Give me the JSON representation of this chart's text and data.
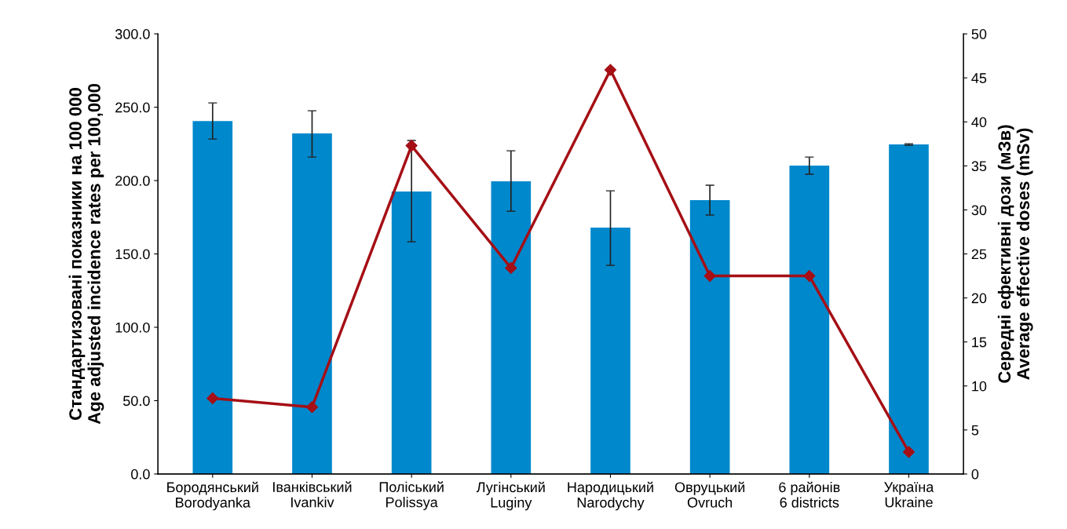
{
  "chart_data": {
    "type": "bar",
    "categories": [
      "Бородянський\nBorodyanka",
      "Іванківський\nIvankiv",
      "Поліський\nPolissya",
      "Лугінський\nLuginy",
      "Народицький\nNarodychy",
      "Овруцький\nOvruch",
      "6 районів\n6 districts",
      "Україна\nUkraine"
    ],
    "series": [
      {
        "type": "bar",
        "color": "#0088cc",
        "values": [
          240.6,
          232.1,
          192.5,
          199.5,
          167.9,
          186.6,
          210.2,
          224.6
        ],
        "errors": [
          [
            228.3,
            252.9
          ],
          [
            216.0,
            247.6
          ],
          [
            158.3,
            227.3
          ],
          [
            179.1,
            220.3
          ],
          [
            142.2,
            193.0
          ],
          [
            176.5,
            196.8
          ],
          [
            204.3,
            216.0
          ],
          [
            224.1,
            225.1
          ]
        ]
      },
      {
        "type": "line",
        "axis": "y2",
        "color": "#a50f15",
        "marker": "diamond",
        "values": [
          8.6,
          7.6,
          37.3,
          23.4,
          45.9,
          22.5,
          22.5,
          2.5
        ]
      }
    ],
    "ylabel": "Стандартизовані показники на 100 000\nAge adjusted incidence rates per 100,000",
    "y2label": "Середні ефективні дози (мЗв)\nAverage effective doses (mSv)",
    "ylim": [
      0,
      300
    ],
    "yticks": [
      {
        "value": 0,
        "label": "0.0"
      },
      {
        "value": 50,
        "label": "50.0"
      },
      {
        "value": 100,
        "label": "100.0"
      },
      {
        "value": 150,
        "label": "150.0"
      },
      {
        "value": 200,
        "label": "200.0"
      },
      {
        "value": 250,
        "label": "250.0"
      },
      {
        "value": 300,
        "label": "300.0"
      }
    ],
    "y2lim": [
      0,
      50
    ],
    "y2ticks": [
      0,
      5,
      10,
      15,
      20,
      25,
      30,
      35,
      40,
      45,
      50
    ],
    "grid": false,
    "legend": false
  }
}
